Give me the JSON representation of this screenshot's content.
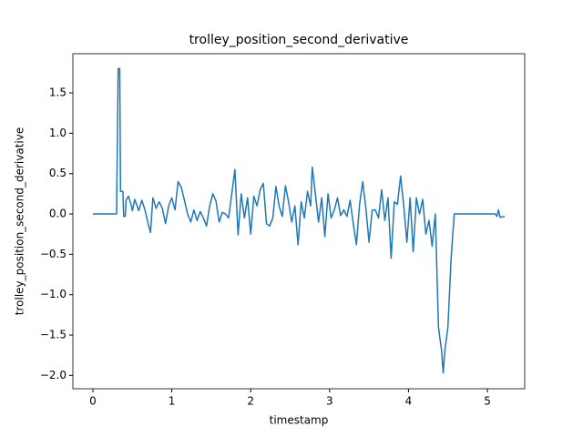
{
  "chart_data": {
    "type": "line",
    "title": "trolley_position_second_derivative",
    "x_label": "timestamp",
    "y_label": "trolley_position_second_derivative",
    "xlim": [
      -0.254,
      5.473
    ],
    "ylim": [
      -2.165,
      1.985
    ],
    "xticks": [
      0,
      1,
      2,
      3,
      4,
      5
    ],
    "yticks": [
      {
        "value": -2.0,
        "label": "−2.0"
      },
      {
        "value": -1.5,
        "label": "−1.5"
      },
      {
        "value": -1.0,
        "label": "−1.0"
      },
      {
        "value": -0.5,
        "label": "−0.5"
      },
      {
        "value": 0.0,
        "label": "0.0"
      },
      {
        "value": 0.5,
        "label": "0.5"
      },
      {
        "value": 1.0,
        "label": "1.0"
      },
      {
        "value": 1.5,
        "label": "1.5"
      }
    ],
    "grid": false,
    "series": [
      {
        "color": "#1f77b4",
        "x": [
          0,
          0.3,
          0.32,
          0.34,
          0.35,
          0.38,
          0.39,
          0.41,
          0.42,
          0.45,
          0.48,
          0.5,
          0.53,
          0.56,
          0.58,
          0.62,
          0.66,
          0.7,
          0.73,
          0.76,
          0.8,
          0.84,
          0.88,
          0.92,
          0.96,
          1.0,
          1.04,
          1.08,
          1.12,
          1.16,
          1.2,
          1.24,
          1.28,
          1.32,
          1.36,
          1.4,
          1.44,
          1.48,
          1.52,
          1.56,
          1.6,
          1.64,
          1.68,
          1.72,
          1.76,
          1.8,
          1.84,
          1.88,
          1.92,
          1.96,
          2.0,
          2.04,
          2.08,
          2.12,
          2.16,
          2.2,
          2.24,
          2.28,
          2.32,
          2.36,
          2.4,
          2.44,
          2.48,
          2.52,
          2.56,
          2.6,
          2.64,
          2.68,
          2.72,
          2.76,
          2.78,
          2.82,
          2.86,
          2.9,
          2.94,
          2.98,
          3.02,
          3.06,
          3.1,
          3.14,
          3.18,
          3.22,
          3.26,
          3.3,
          3.34,
          3.38,
          3.42,
          3.46,
          3.5,
          3.54,
          3.58,
          3.62,
          3.66,
          3.7,
          3.74,
          3.78,
          3.82,
          3.86,
          3.9,
          3.94,
          3.98,
          4.02,
          4.06,
          4.1,
          4.14,
          4.18,
          4.22,
          4.26,
          4.3,
          4.34,
          4.38,
          4.42,
          4.44,
          4.46,
          4.5,
          4.54,
          4.58,
          5.0,
          5.1,
          5.12,
          5.14,
          5.16,
          5.22
        ],
        "values": [
          0,
          0,
          1.8,
          1.8,
          0.28,
          0.28,
          -0.03,
          -0.03,
          0.17,
          0.22,
          0.13,
          0.04,
          0.18,
          0.1,
          0.04,
          0.17,
          0.05,
          -0.12,
          -0.23,
          0.2,
          0.07,
          0.15,
          0.07,
          -0.12,
          0.1,
          0.2,
          0.05,
          0.4,
          0.33,
          0.17,
          0.0,
          -0.1,
          0.05,
          -0.08,
          0.03,
          -0.05,
          -0.15,
          0.1,
          0.25,
          0.16,
          -0.1,
          0.02,
          0.0,
          -0.05,
          0.25,
          0.55,
          -0.26,
          0.25,
          -0.05,
          0.2,
          -0.25,
          0.22,
          0.1,
          0.3,
          0.38,
          -0.12,
          -0.15,
          -0.05,
          0.34,
          0.1,
          -0.03,
          0.35,
          0.15,
          -0.1,
          0.1,
          -0.38,
          0.15,
          -0.05,
          0.28,
          0.1,
          0.58,
          0.25,
          -0.1,
          0.2,
          -0.28,
          0.25,
          -0.05,
          0.05,
          0.2,
          -0.02,
          0.05,
          -0.03,
          0.17,
          -0.12,
          -0.38,
          0.12,
          0.4,
          0.07,
          -0.35,
          0.05,
          0.05,
          -0.05,
          0.3,
          -0.08,
          0.2,
          -0.55,
          0.15,
          0.12,
          0.47,
          0.1,
          -0.35,
          0.2,
          -0.47,
          0.2,
          0.0,
          0.18,
          -0.25,
          -0.08,
          -0.4,
          0.0,
          -1.4,
          -1.7,
          -1.97,
          -1.7,
          -1.4,
          -0.55,
          0,
          0,
          0,
          -0.03,
          0.05,
          -0.04,
          -0.03
        ]
      }
    ]
  }
}
